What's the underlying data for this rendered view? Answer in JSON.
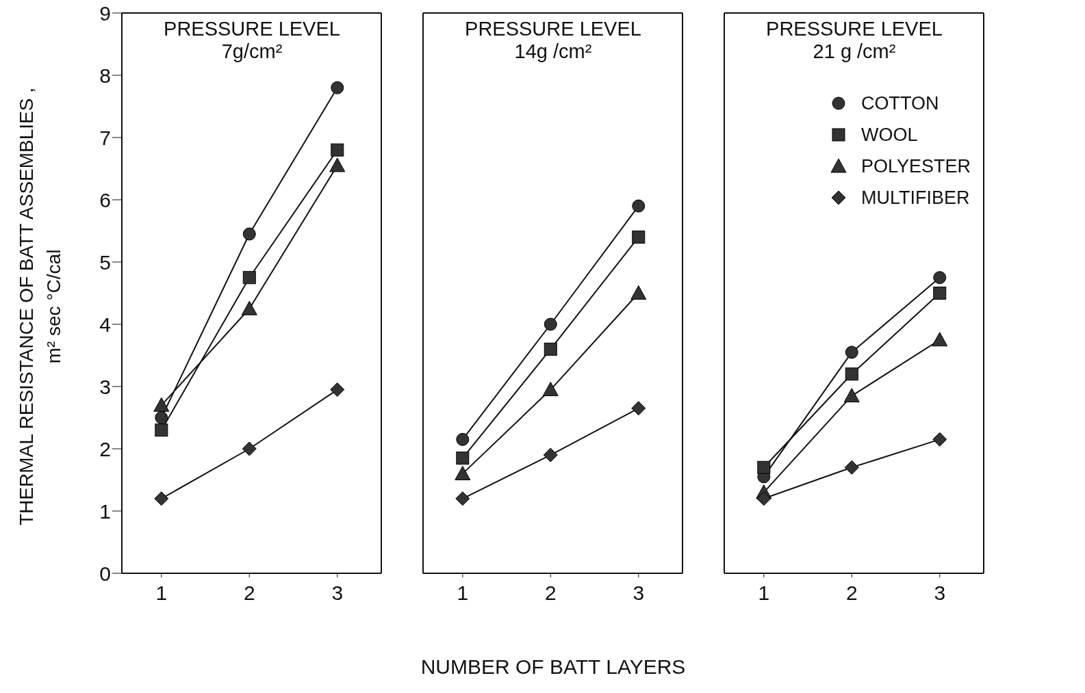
{
  "chart_data": [
    {
      "type": "line",
      "title": "PRESSURE LEVEL",
      "subtitle": "7g/cm²",
      "ylabel": "THERMAL RESISTANCE OF BATT ASSEMBLIES ,\nm² sec °C/cal",
      "x": [
        1,
        2,
        3
      ],
      "xlim": [
        0.55,
        3.5
      ],
      "xticks": [
        1,
        2,
        3
      ],
      "ylim": [
        0,
        9
      ],
      "yticks": [
        0,
        1,
        2,
        3,
        4,
        5,
        6,
        7,
        8,
        9
      ],
      "legend": false,
      "series": [
        {
          "color": "#333333",
          "marker": "circle",
          "values": [
            2.5,
            5.45,
            7.8
          ]
        },
        {
          "color": "#333333",
          "marker": "square",
          "values": [
            2.3,
            4.75,
            6.8
          ]
        },
        {
          "color": "#333333",
          "marker": "triangle",
          "values": [
            2.7,
            4.25,
            6.55
          ]
        },
        {
          "color": "#333333",
          "marker": "diamond",
          "values": [
            1.2,
            2.0,
            2.95
          ]
        }
      ]
    },
    {
      "type": "line",
      "title": "PRESSURE LEVEL",
      "subtitle": "14g /cm²",
      "xlabel": "NUMBER OF BATT LAYERS",
      "x": [
        1,
        2,
        3
      ],
      "xlim": [
        0.55,
        3.5
      ],
      "xticks": [
        1,
        2,
        3
      ],
      "ylim": [
        0,
        9
      ],
      "yticks": [
        0,
        1,
        2,
        3,
        4,
        5,
        6,
        7,
        8,
        9
      ],
      "tick_labels": "x",
      "legend": false,
      "series": [
        {
          "color": "#333333",
          "marker": "circle",
          "values": [
            2.15,
            4.0,
            5.9
          ]
        },
        {
          "color": "#333333",
          "marker": "square",
          "values": [
            1.85,
            3.6,
            5.4
          ]
        },
        {
          "color": "#333333",
          "marker": "triangle",
          "values": [
            1.6,
            2.95,
            4.5
          ]
        },
        {
          "color": "#333333",
          "marker": "diamond",
          "values": [
            1.2,
            1.9,
            2.65
          ]
        }
      ]
    },
    {
      "type": "line",
      "title": "PRESSURE LEVEL",
      "subtitle": "21 g /cm²",
      "x": [
        1,
        2,
        3
      ],
      "xlim": [
        0.55,
        3.5
      ],
      "xticks": [
        1,
        2,
        3
      ],
      "ylim": [
        0,
        9
      ],
      "yticks": [
        0,
        1,
        2,
        3,
        4,
        5,
        6,
        7,
        8,
        9
      ],
      "tick_labels": "x",
      "legend": "top right",
      "series": [
        {
          "name": "COTTON",
          "color": "#333333",
          "marker": "circle",
          "values": [
            1.55,
            3.55,
            4.75
          ]
        },
        {
          "name": "WOOL",
          "color": "#333333",
          "marker": "square",
          "values": [
            1.7,
            3.2,
            4.5
          ]
        },
        {
          "name": "POLYESTER",
          "color": "#333333",
          "marker": "triangle",
          "values": [
            1.3,
            2.85,
            3.75
          ]
        },
        {
          "name": "MULTIFIBER",
          "color": "#333333",
          "marker": "diamond",
          "values": [
            1.2,
            1.7,
            2.15
          ]
        }
      ]
    }
  ]
}
